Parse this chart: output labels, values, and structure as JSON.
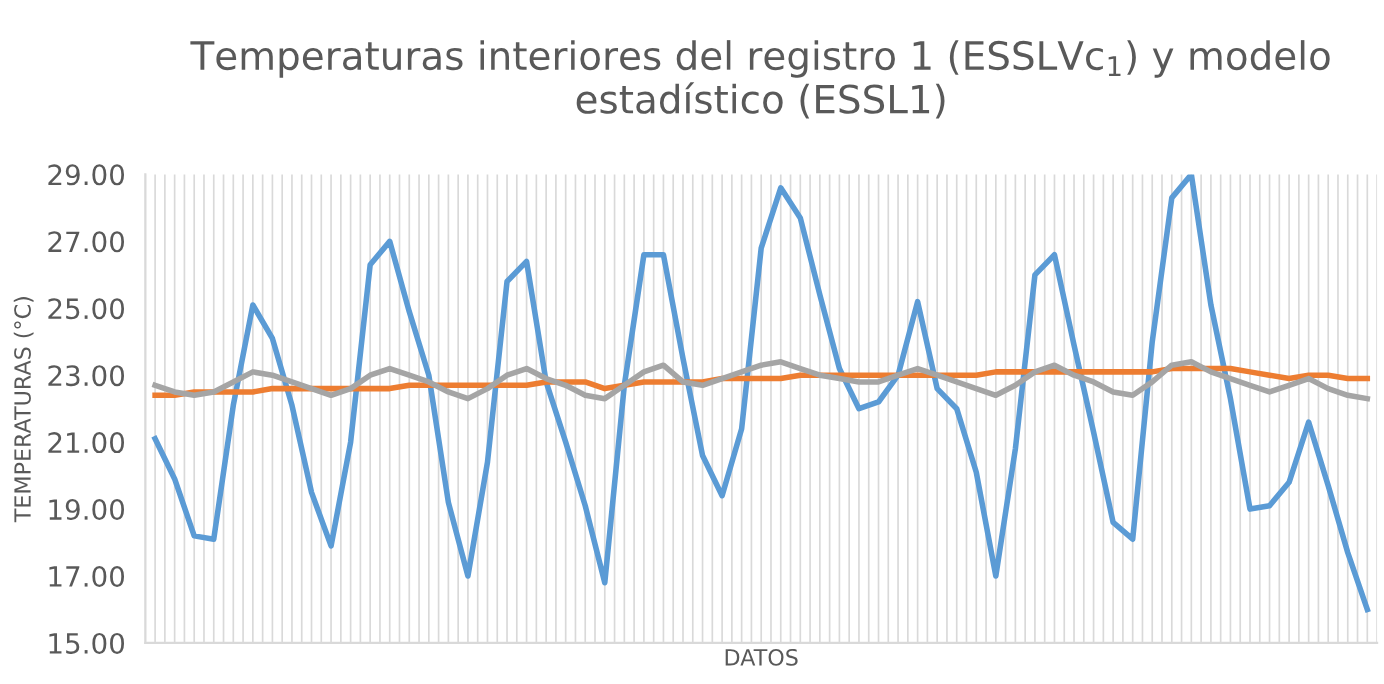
{
  "chart_data": {
    "type": "line",
    "title": "Temperaturas interiores del registro 1 (ESSLVc$_{1}$) y modelo\nestadístico (ESSL1)",
    "xlabel": "DATOS",
    "ylabel": "TEMPERATURAS (°C)",
    "categories": [
      null,
      null,
      null,
      null,
      null,
      null,
      null,
      null,
      null,
      null,
      null,
      null,
      null,
      null,
      null,
      null,
      null,
      null,
      null,
      null,
      null,
      null,
      null,
      null,
      null,
      null,
      null,
      null,
      null,
      null,
      null,
      null,
      null,
      null,
      null,
      null,
      null,
      null,
      null,
      null,
      null,
      null,
      null,
      null,
      null,
      null,
      null,
      null,
      null,
      null,
      null,
      null,
      null,
      null,
      null,
      null,
      null,
      null,
      null,
      null,
      null,
      null,
      null
    ],
    "ylim": [
      15,
      29
    ],
    "yticks": [
      {
        "value": 15,
        "label": "15.00"
      },
      {
        "value": 17,
        "label": "17.00"
      },
      {
        "value": 19,
        "label": "19.00"
      },
      {
        "value": 21,
        "label": "21.00"
      },
      {
        "value": 23,
        "label": "23.00"
      },
      {
        "value": 25,
        "label": "25.00"
      },
      {
        "value": 27,
        "label": "27.00"
      },
      {
        "value": 29,
        "label": "29.00"
      }
    ],
    "tick_labels": "y",
    "grid": "x",
    "marker": "none",
    "line_style": "solid",
    "series": [
      {
        "color": "#5b9bd5",
        "values": [
          21.1,
          19.9,
          18.2,
          18.1,
          22.1,
          25.1,
          24.1,
          22.1,
          19.5,
          17.9,
          21.0,
          26.3,
          27.0,
          24.9,
          23.0,
          19.2,
          17.0,
          20.4,
          25.8,
          26.4,
          22.8,
          21.0,
          19.1,
          16.8,
          22.7,
          26.6,
          26.6,
          23.5,
          20.6,
          19.4,
          21.4,
          26.8,
          28.6,
          27.7,
          25.4,
          23.2,
          22.0,
          22.2,
          23.0,
          25.2,
          22.6,
          22.0,
          20.1,
          17.0,
          20.8,
          26.0,
          26.6,
          23.9,
          21.3,
          18.6,
          18.1,
          24.0,
          28.3,
          29.0,
          25.1,
          22.3,
          19.0,
          19.1,
          19.8,
          21.6,
          19.7,
          17.7,
          16.0
        ]
      },
      {
        "color": "#ed7d31",
        "values": [
          22.4,
          22.4,
          22.5,
          22.5,
          22.5,
          22.5,
          22.6,
          22.6,
          22.6,
          22.6,
          22.6,
          22.6,
          22.6,
          22.7,
          22.7,
          22.7,
          22.7,
          22.7,
          22.7,
          22.7,
          22.8,
          22.8,
          22.8,
          22.6,
          22.7,
          22.8,
          22.8,
          22.8,
          22.8,
          22.9,
          22.9,
          22.9,
          22.9,
          23.0,
          23.0,
          23.0,
          23.0,
          23.0,
          23.0,
          23.0,
          23.0,
          23.0,
          23.0,
          23.1,
          23.1,
          23.1,
          23.1,
          23.1,
          23.1,
          23.1,
          23.1,
          23.1,
          23.2,
          23.2,
          23.2,
          23.2,
          23.1,
          23.0,
          22.9,
          23.0,
          23.0,
          22.9,
          22.9
        ]
      },
      {
        "color": "#a5a5a5",
        "values": [
          22.7,
          22.5,
          22.4,
          22.5,
          22.8,
          23.1,
          23.0,
          22.8,
          22.6,
          22.4,
          22.6,
          23.0,
          23.2,
          23.0,
          22.8,
          22.5,
          22.3,
          22.6,
          23.0,
          23.2,
          22.9,
          22.7,
          22.4,
          22.3,
          22.7,
          23.1,
          23.3,
          22.8,
          22.7,
          22.9,
          23.1,
          23.3,
          23.4,
          23.2,
          23.0,
          22.9,
          22.8,
          22.8,
          23.0,
          23.2,
          23.0,
          22.8,
          22.6,
          22.4,
          22.7,
          23.1,
          23.3,
          23.0,
          22.8,
          22.5,
          22.4,
          22.8,
          23.3,
          23.4,
          23.1,
          22.9,
          22.7,
          22.5,
          22.7,
          22.9,
          22.6,
          22.4,
          22.3
        ]
      }
    ]
  }
}
